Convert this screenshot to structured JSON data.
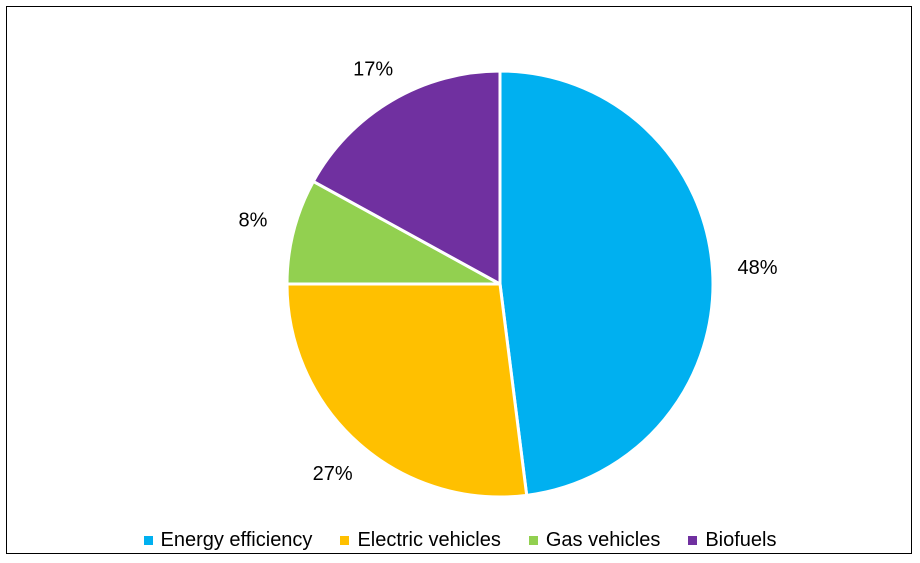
{
  "chart_data": {
    "type": "pie",
    "title": "",
    "legend_position": "bottom",
    "categories": [
      "Energy efficiency",
      "Electric vehicles",
      "Gas vehicles",
      "Biofuels"
    ],
    "values": [
      48,
      27,
      8,
      17
    ],
    "labels": [
      "48%",
      "27%",
      "8%",
      "17%"
    ],
    "colors": [
      "#00b0f0",
      "#ffc000",
      "#92d050",
      "#7030a0"
    ]
  }
}
